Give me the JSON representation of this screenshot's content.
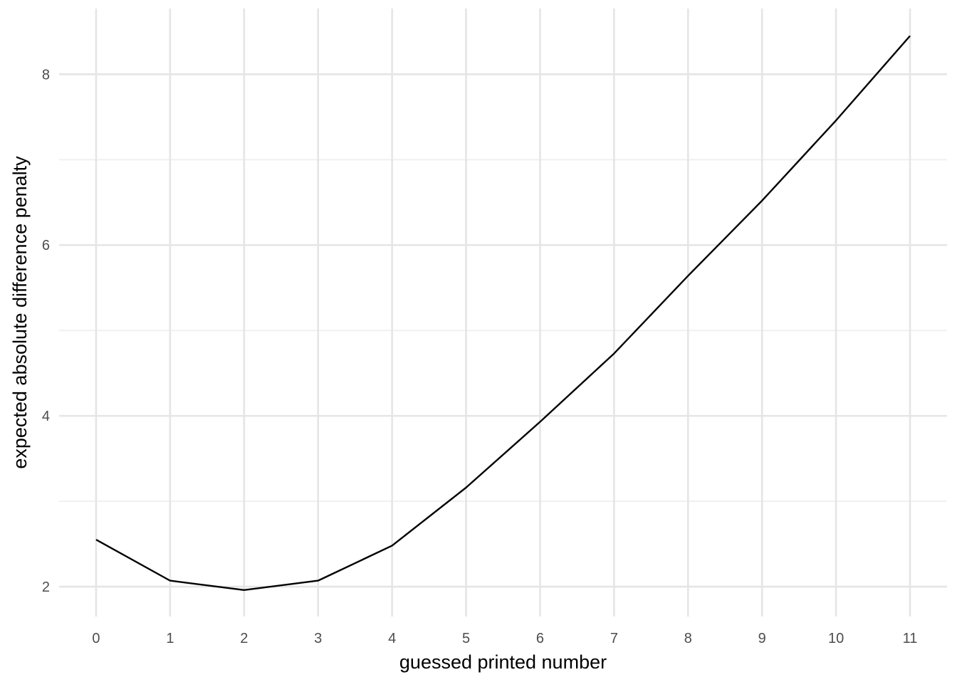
{
  "colors": {
    "background": "#ffffff",
    "grid_major": "#e5e5e5",
    "grid_minor": "#f0f0f0",
    "line": "#000000",
    "tick_text": "#4d4d4d",
    "axis_title": "#000000"
  },
  "chart_data": {
    "type": "line",
    "title": "",
    "xlabel": "guessed printed number",
    "ylabel": "expected absolute difference penalty",
    "x": [
      0,
      1,
      2,
      3,
      4,
      5,
      6,
      7,
      8,
      9,
      10,
      11
    ],
    "series": [
      {
        "values": [
          2.55,
          2.07,
          1.96,
          2.07,
          2.48,
          3.16,
          3.93,
          4.73,
          5.64,
          6.52,
          7.46,
          8.45
        ]
      }
    ],
    "x_ticks": [
      0,
      1,
      2,
      3,
      4,
      5,
      6,
      7,
      8,
      9,
      10,
      11
    ],
    "y_ticks": [
      2,
      4,
      6,
      8
    ],
    "xlim": [
      -0.5,
      11.5
    ],
    "ylim": [
      1.65,
      8.77
    ],
    "grid": true,
    "minor_grid": true,
    "legend": "none"
  }
}
